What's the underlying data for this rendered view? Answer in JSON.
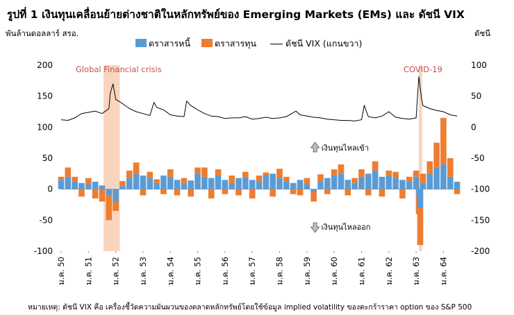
{
  "title": "รูปที่ 1 เงินทุนเคลื่อนย้ายต่างชาติในหลักทรัพย์ของ Emerging Markets (EMs) และ ดัชนี VIX",
  "left_axis_label": "พันล้านดอลลาร์ สรอ.",
  "right_axis_label": "ดัชนี",
  "footnote": "หมายเหตุ: ดัชนี VIX คือ เครื่องชี้วัดความผันผวนของตลาดหลักทรัพย์โดยใช้ข้อมูล implied volatility ของตะกร้าราคา option ของ S&P 500",
  "colors": {
    "debt": "#5B9BD5",
    "equity": "#ED7D31",
    "vix": "#000000",
    "shade": "#F8CBAD",
    "event_text": "#C0504D"
  },
  "chart_data": {
    "type": "bar",
    "stacked": true,
    "frequency": "weekly",
    "x_start": "มค. 2550",
    "x_end": "กค. 2564",
    "x_tick_labels": [
      "ม.ค. 50",
      "ม.ค. 51",
      "ม.ค. 52",
      "ม.ค. 53",
      "ม.ค. 54",
      "ม.ค. 55",
      "ม.ค. 56",
      "ม.ค. 57",
      "ม.ค. 58",
      "ม.ค. 59",
      "ม.ค. 60",
      "ม.ค. 61",
      "ม.ค. 62",
      "ม.ค. 63",
      "ม.ค. 64"
    ],
    "left_ylim": [
      -100,
      200
    ],
    "left_ticks": [
      -100,
      -50,
      0,
      50,
      100,
      150,
      200
    ],
    "right_ylim": [
      -200,
      100
    ],
    "right_ticks": [
      -200,
      -150,
      -100,
      -50,
      0,
      50,
      100
    ],
    "right_axis_shown_ticks": [
      -200,
      -150,
      -100,
      -50,
      0,
      50,
      100
    ],
    "legend": [
      "ตราสารหนี้",
      "ตราสารทุน",
      "ดัชนี VIX (แกนขวา)"
    ],
    "annotations": {
      "inflow": "เงินทุนไหลเข้า",
      "outflow": "เงินทุนไหลออก",
      "event1": "Global Financial crisis",
      "event2": "COVID-19"
    },
    "shaded_periods": [
      {
        "label": "Global Financial crisis",
        "from": 1.55,
        "to": 2.15
      },
      {
        "label": "COVID-19",
        "from": 13.1,
        "to": 13.22
      }
    ],
    "series": [
      {
        "name": "ตราสารหนี้",
        "x": [
          0.0,
          0.25,
          0.5,
          0.75,
          1.0,
          1.25,
          1.5,
          1.75,
          2.0,
          2.25,
          2.5,
          2.75,
          3.0,
          3.25,
          3.5,
          3.75,
          4.0,
          4.25,
          4.5,
          4.75,
          5.0,
          5.25,
          5.5,
          5.75,
          6.0,
          6.25,
          6.5,
          6.75,
          7.0,
          7.25,
          7.5,
          7.75,
          8.0,
          8.25,
          8.5,
          8.75,
          9.0,
          9.25,
          9.5,
          9.75,
          10.0,
          10.25,
          10.5,
          10.75,
          11.0,
          11.25,
          11.5,
          11.75,
          12.0,
          12.25,
          12.5,
          12.75,
          13.0,
          13.1,
          13.15,
          13.25,
          13.5,
          13.75,
          14.0,
          14.25,
          14.5
        ],
        "values": [
          15,
          20,
          12,
          10,
          8,
          12,
          6,
          -10,
          -20,
          5,
          18,
          25,
          22,
          18,
          10,
          22,
          20,
          15,
          10,
          14,
          25,
          20,
          18,
          22,
          15,
          10,
          18,
          20,
          15,
          12,
          22,
          25,
          18,
          12,
          10,
          15,
          8,
          -5,
          12,
          18,
          22,
          25,
          15,
          10,
          20,
          25,
          30,
          20,
          22,
          18,
          15,
          12,
          20,
          -10,
          -30,
          10,
          25,
          35,
          40,
          20,
          12
        ]
      },
      {
        "name": "ตราสารทุน",
        "x": [
          0.0,
          0.25,
          0.5,
          0.75,
          1.0,
          1.25,
          1.5,
          1.75,
          2.0,
          2.25,
          2.5,
          2.75,
          3.0,
          3.25,
          3.5,
          3.75,
          4.0,
          4.25,
          4.5,
          4.75,
          5.0,
          5.25,
          5.5,
          5.75,
          6.0,
          6.25,
          6.5,
          6.75,
          7.0,
          7.25,
          7.5,
          7.75,
          8.0,
          8.25,
          8.5,
          8.75,
          9.0,
          9.25,
          9.5,
          9.75,
          10.0,
          10.25,
          10.5,
          10.75,
          11.0,
          11.25,
          11.5,
          11.75,
          12.0,
          12.25,
          12.5,
          12.75,
          13.0,
          13.1,
          13.15,
          13.25,
          13.5,
          13.75,
          14.0,
          14.25,
          14.5
        ],
        "values": [
          5,
          15,
          8,
          -12,
          10,
          -15,
          -20,
          -40,
          -15,
          8,
          12,
          18,
          -10,
          10,
          6,
          -8,
          12,
          -10,
          8,
          -12,
          10,
          15,
          -15,
          10,
          -8,
          12,
          -10,
          8,
          -15,
          10,
          5,
          -12,
          15,
          8,
          -8,
          -10,
          10,
          -15,
          12,
          -8,
          10,
          15,
          -10,
          8,
          12,
          -10,
          15,
          -12,
          8,
          10,
          -15,
          8,
          10,
          -30,
          -60,
          15,
          20,
          40,
          75,
          30,
          -8
        ]
      },
      {
        "name": "ดัชนี VIX (แกนขวา)",
        "x": [
          0.0,
          0.25,
          0.5,
          0.75,
          1.0,
          1.25,
          1.5,
          1.75,
          1.8,
          1.9,
          2.0,
          2.25,
          2.5,
          2.75,
          3.0,
          3.25,
          3.4,
          3.5,
          3.75,
          4.0,
          4.25,
          4.5,
          4.6,
          4.75,
          5.0,
          5.25,
          5.5,
          5.75,
          6.0,
          6.25,
          6.5,
          6.75,
          7.0,
          7.25,
          7.5,
          7.75,
          8.0,
          8.25,
          8.6,
          8.75,
          9.0,
          9.25,
          9.5,
          9.75,
          10.0,
          10.25,
          10.5,
          10.75,
          11.0,
          11.1,
          11.25,
          11.5,
          11.75,
          12.0,
          12.25,
          12.5,
          12.75,
          13.0,
          13.1,
          13.2,
          13.25,
          13.5,
          13.75,
          14.0,
          14.25,
          14.5
        ],
        "values": [
          12,
          11,
          15,
          22,
          24,
          26,
          22,
          30,
          55,
          70,
          45,
          38,
          30,
          25,
          22,
          19,
          40,
          32,
          28,
          20,
          18,
          17,
          42,
          35,
          28,
          22,
          18,
          17,
          14,
          15,
          15,
          17,
          13,
          14,
          16,
          14,
          15,
          17,
          26,
          20,
          18,
          16,
          15,
          13,
          12,
          11,
          11,
          10,
          12,
          35,
          17,
          15,
          18,
          25,
          16,
          14,
          13,
          15,
          82,
          45,
          35,
          30,
          27,
          25,
          20,
          18
        ]
      }
    ]
  }
}
